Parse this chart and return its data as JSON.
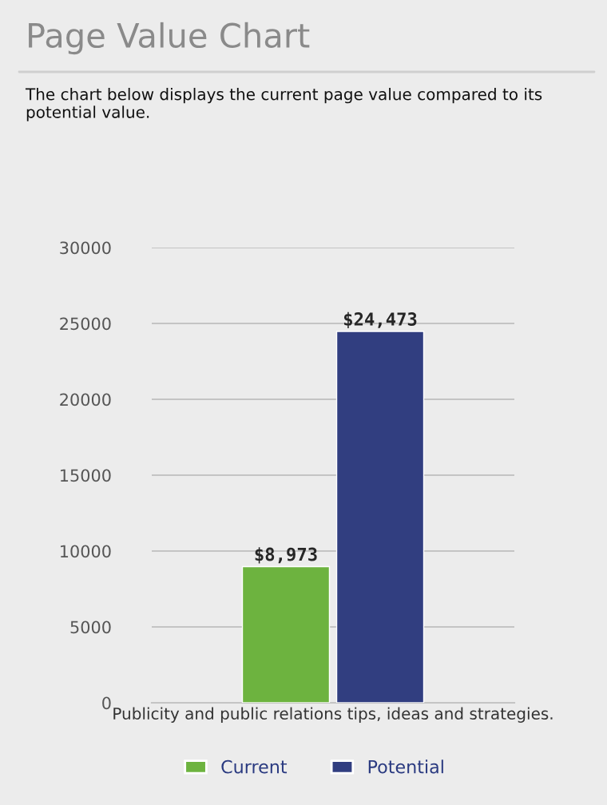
{
  "chart_data": {
    "type": "bar",
    "title": "Page Value Chart",
    "subtitle": "The chart below displays the current page value compared to its potential value.",
    "categories": [
      "Publicity and public relations tips, ideas and strategies."
    ],
    "series": [
      {
        "name": "Current",
        "color": "#6db33f",
        "values": [
          8973
        ],
        "value_labels": [
          "$8,973"
        ]
      },
      {
        "name": "Potential",
        "color": "#313e80",
        "values": [
          24473
        ],
        "value_labels": [
          "$24,473"
        ]
      }
    ],
    "ylim": [
      0,
      30000
    ],
    "yticks": [
      0,
      5000,
      10000,
      15000,
      20000,
      25000,
      30000
    ],
    "grid": "y",
    "legend": "bottom"
  }
}
